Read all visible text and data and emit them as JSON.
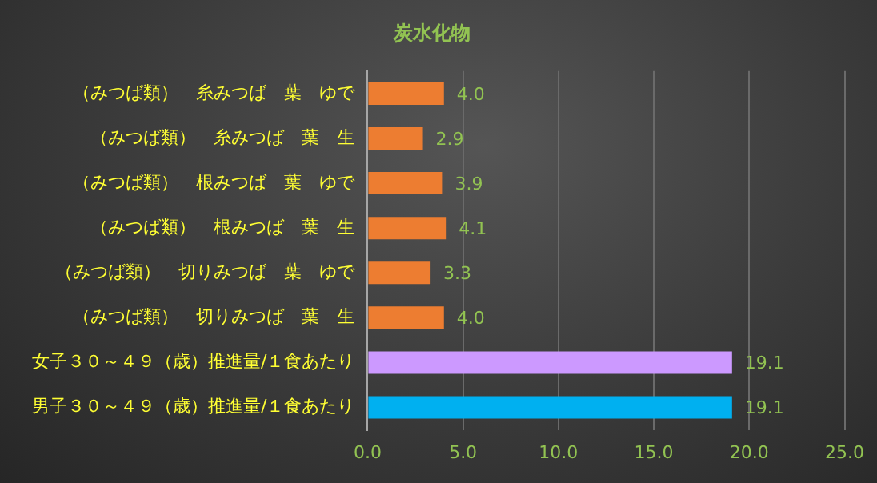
{
  "chart_data": {
    "type": "bar",
    "orientation": "horizontal",
    "title": "炭水化物",
    "categories": [
      "（みつば類）　糸みつば　葉　ゆで",
      "（みつば類）　糸みつば　葉　生",
      "（みつば類）　根みつば　葉　ゆで",
      "（みつば類）　根みつば　葉　生",
      "（みつば類）　切りみつば　葉　ゆで",
      "（みつば類）　切りみつば　葉　生",
      "女子３０～４９（歳）推進量/１食あたり",
      "男子３０～４９（歳）推進量/１食あたり"
    ],
    "values": [
      4.0,
      2.9,
      3.9,
      4.1,
      3.3,
      4.0,
      19.1,
      19.1
    ],
    "colors": [
      "#ed7d31",
      "#ed7d31",
      "#ed7d31",
      "#ed7d31",
      "#ed7d31",
      "#ed7d31",
      "#cc99ff",
      "#00b0f0"
    ],
    "xlim": [
      0,
      25
    ],
    "xticks": [
      {
        "value": 0,
        "label": "0.0"
      },
      {
        "value": 5,
        "label": "5.0"
      },
      {
        "value": 10,
        "label": "10.0"
      },
      {
        "value": 15,
        "label": "15.0"
      },
      {
        "value": 20,
        "label": "20.0"
      },
      {
        "value": 25,
        "label": "25.0"
      }
    ],
    "value_labels": [
      "4.0",
      "2.9",
      "3.9",
      "4.1",
      "3.3",
      "4.0",
      "19.1",
      "19.1"
    ],
    "grid": "x",
    "legend": false
  }
}
